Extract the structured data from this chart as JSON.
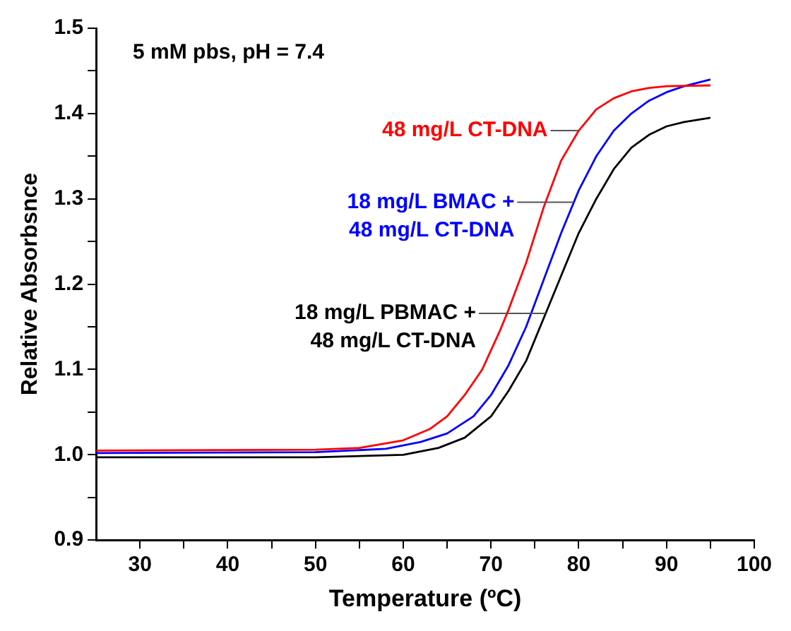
{
  "chart_data": {
    "type": "line",
    "xlabel": "Temperature (ºC)",
    "ylabel": "Relative Absorbsnce",
    "annotations": [
      "5 mM pbs, pH = 7.4"
    ],
    "xlim": [
      25,
      100
    ],
    "ylim": [
      0.9,
      1.5
    ],
    "xticks": [
      30,
      {
        "value": 35,
        "label": null
      },
      40,
      {
        "value": 45,
        "label": null
      },
      50,
      {
        "value": 55,
        "label": null
      },
      60,
      {
        "value": 65,
        "label": null
      },
      70,
      {
        "value": 75,
        "label": null
      },
      80,
      {
        "value": 85,
        "label": null
      },
      90,
      {
        "value": 95,
        "label": null
      },
      100
    ],
    "yticks": [
      {
        "value": 0.9,
        "label": "0.9"
      },
      {
        "value": 0.95,
        "label": null
      },
      {
        "value": 1.0,
        "label": "1.0"
      },
      {
        "value": 1.05,
        "label": null
      },
      {
        "value": 1.1,
        "label": "1.1"
      },
      {
        "value": 1.15,
        "label": null
      },
      {
        "value": 1.2,
        "label": "1.2"
      },
      {
        "value": 1.25,
        "label": null
      },
      {
        "value": 1.3,
        "label": "1.3"
      },
      {
        "value": 1.35,
        "label": null
      },
      {
        "value": 1.4,
        "label": "1.4"
      },
      {
        "value": 1.45,
        "label": null
      },
      {
        "value": 1.5,
        "label": "1.5"
      }
    ],
    "grid": false,
    "legend": false,
    "marker": "none",
    "line_style": "solid",
    "series": [
      {
        "name": "48 mg/L CT-DNA",
        "color": "#ff0000",
        "x": [
          25,
          50,
          55,
          60,
          63,
          65,
          67,
          69,
          71,
          72,
          74,
          76,
          78,
          80,
          82,
          84,
          86,
          88,
          90,
          95
        ],
        "values": [
          1.005,
          1.006,
          1.008,
          1.017,
          1.03,
          1.045,
          1.07,
          1.1,
          1.145,
          1.17,
          1.225,
          1.29,
          1.345,
          1.38,
          1.405,
          1.418,
          1.426,
          1.43,
          1.432,
          1.433
        ]
      },
      {
        "name": "18 mg/L BMAC + 48 mg/L CT-DNA",
        "color": "#0000ff",
        "x": [
          25,
          50,
          58,
          62,
          65,
          68,
          70,
          72,
          74,
          76,
          78,
          80,
          82,
          84,
          86,
          88,
          90,
          92,
          95
        ],
        "values": [
          1.002,
          1.003,
          1.007,
          1.015,
          1.025,
          1.045,
          1.07,
          1.105,
          1.15,
          1.205,
          1.26,
          1.31,
          1.35,
          1.38,
          1.4,
          1.415,
          1.425,
          1.432,
          1.44
        ]
      },
      {
        "name": "18 mg/L PBMAC + 48 mg/L CT-DNA",
        "color": "#000000",
        "x": [
          25,
          50,
          60,
          64,
          67,
          70,
          72,
          74,
          76,
          78,
          80,
          82,
          84,
          86,
          88,
          90,
          92,
          95
        ],
        "values": [
          0.997,
          0.997,
          1.0,
          1.008,
          1.02,
          1.045,
          1.075,
          1.11,
          1.16,
          1.21,
          1.26,
          1.3,
          1.335,
          1.36,
          1.375,
          1.385,
          1.39,
          1.395
        ]
      }
    ]
  }
}
